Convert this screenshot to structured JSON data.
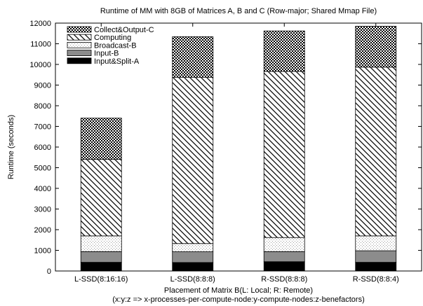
{
  "chart_data": {
    "type": "bar",
    "stacked": true,
    "title": "Runtime of MM with 8GB of Matrices A, B and C (Row-major; Shared Mmap File)",
    "xlabel": "Placement of Matrix B(L: Local; R: Remote)",
    "xlabel_note": "(x:y:z => x-processes-per-compute-node:y-compute-nodes:z-benefactors)",
    "ylabel": "Runtime (seconds)",
    "ylim": [
      0,
      12000
    ],
    "yticks": [
      0,
      1000,
      2000,
      3000,
      4000,
      5000,
      6000,
      7000,
      8000,
      9000,
      10000,
      11000,
      12000
    ],
    "grid": false,
    "legend_position": "top-left",
    "categories": [
      "L-SSD(8:16:16)",
      "L-SSD(8:8:8)",
      "R-SSD(8:8:8)",
      "R-SSD(8:8:4)"
    ],
    "series": [
      {
        "name": "Input&Split-A",
        "values": [
          420,
          410,
          450,
          420
        ],
        "pattern": "solid-black"
      },
      {
        "name": "Input-B",
        "values": [
          520,
          520,
          490,
          560
        ],
        "pattern": "gray"
      },
      {
        "name": "Broadcast-B",
        "values": [
          760,
          400,
          680,
          720
        ],
        "pattern": "dotted"
      },
      {
        "name": "Computing",
        "values": [
          3700,
          8050,
          8040,
          8170
        ],
        "pattern": "diagonal-hatch"
      },
      {
        "name": "Collect&Output-C",
        "values": [
          2000,
          1960,
          1960,
          1980
        ],
        "pattern": "checkered"
      }
    ],
    "legend_order": [
      "Collect&Output-C",
      "Computing",
      "Broadcast-B",
      "Input-B",
      "Input&Split-A"
    ]
  }
}
